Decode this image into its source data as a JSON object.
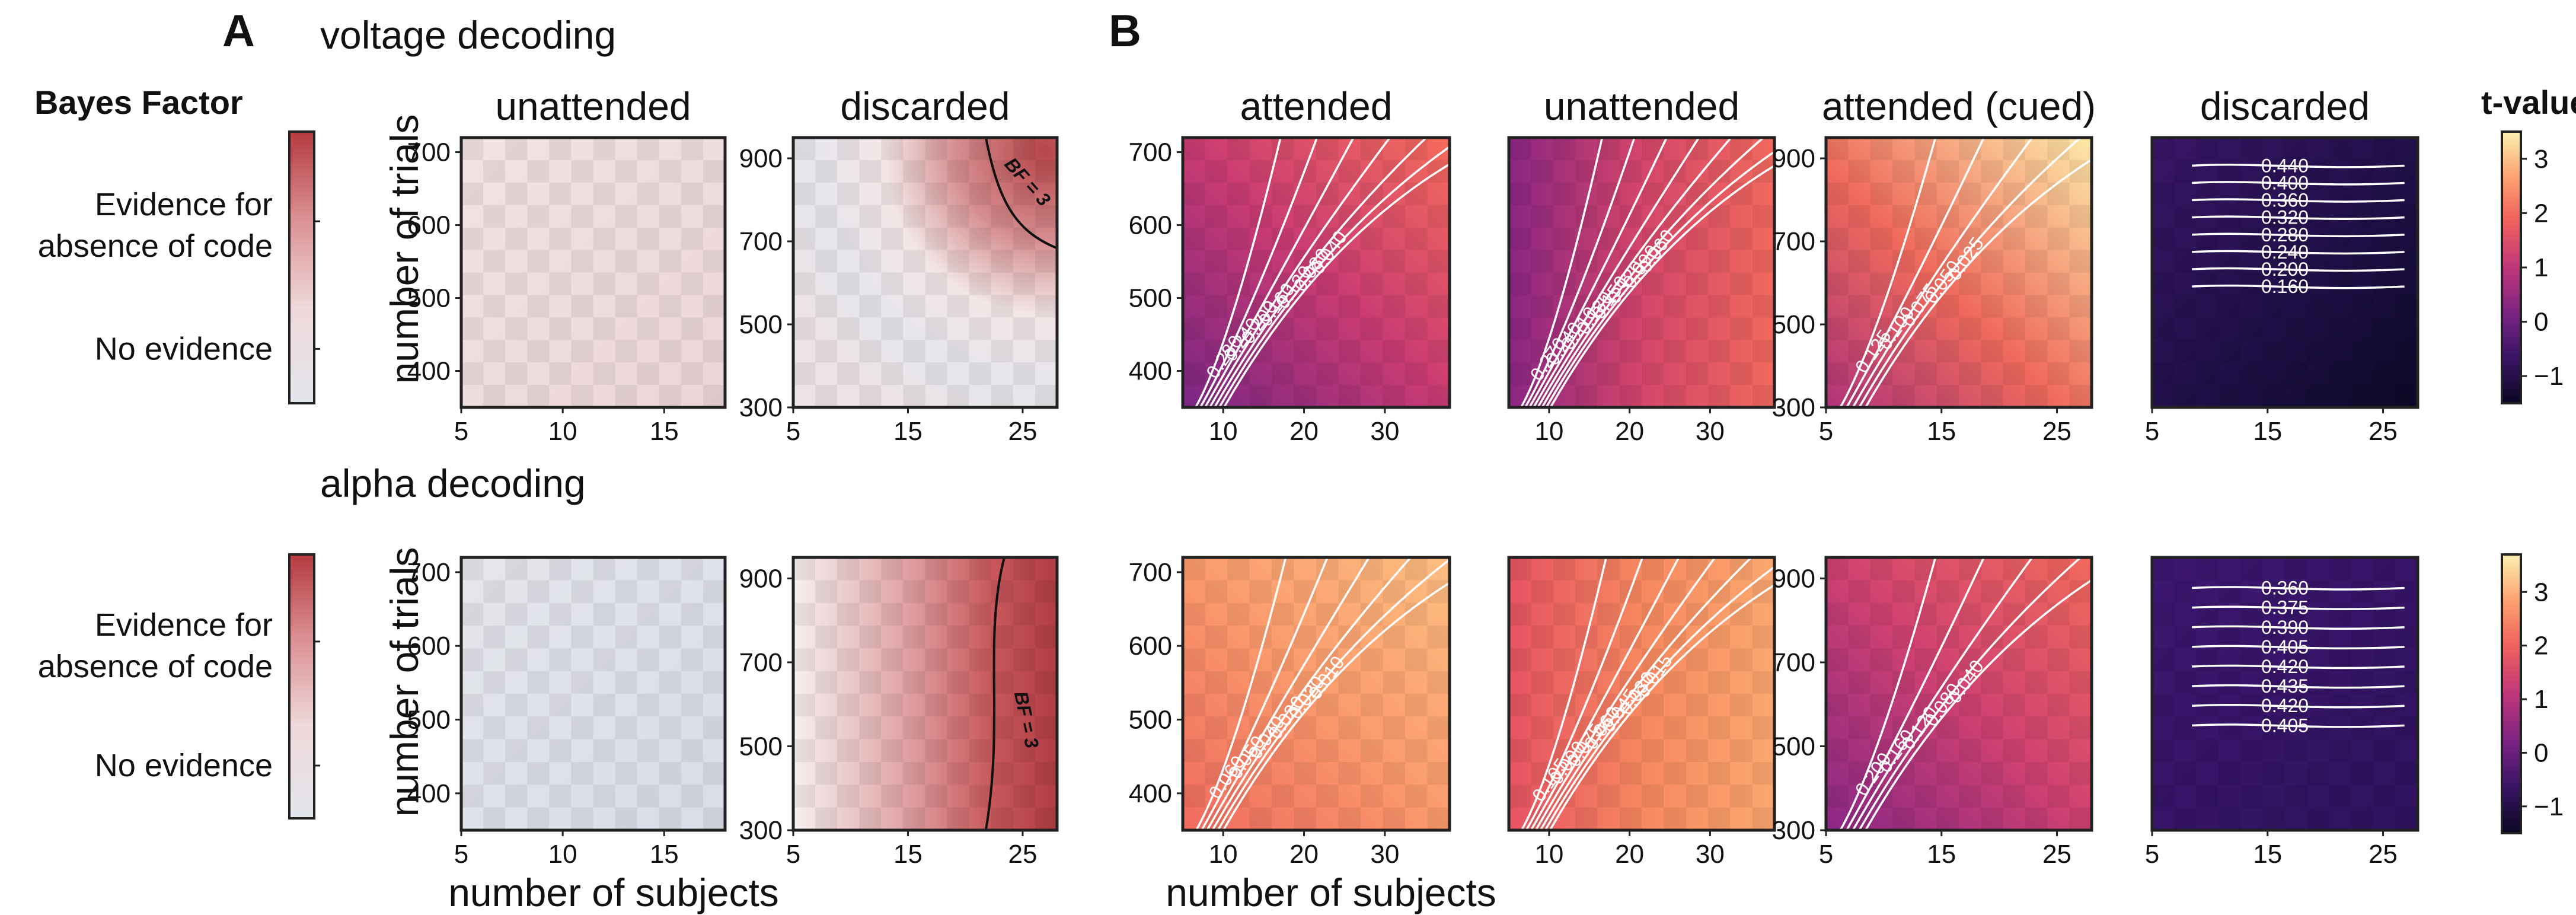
{
  "panel_labels": {
    "a": "A",
    "b": "B"
  },
  "row_titles": {
    "voltage": "voltage decoding",
    "alpha": "alpha decoding"
  },
  "bf_colorbar": {
    "title": "Bayes Factor",
    "label_evidence_line1": "Evidence for",
    "label_evidence_line2": "absence of code",
    "label_none": "No evidence",
    "stops": [
      "#e2e5ec",
      "#efd9da",
      "#d98b8e",
      "#b43a3f"
    ]
  },
  "t_colorbar": {
    "title": "t-value",
    "top": {
      "ticks": [
        "3",
        "2",
        "1",
        "0",
        "−1"
      ],
      "range": [
        -1.5,
        3.5
      ]
    },
    "bottom": {
      "ticks": [
        "3",
        "2",
        "1",
        "0",
        "−1"
      ],
      "range": [
        -1.5,
        3.7
      ]
    },
    "stops": [
      "#0b0722",
      "#3a1466",
      "#7b2382",
      "#c0377a",
      "#f0605d",
      "#fca06f",
      "#fcf0b0"
    ]
  },
  "axis_labels": {
    "trials": "number of trials",
    "subjects": "number of subjects"
  },
  "bf_line_label": "BF = 3",
  "chart_data": [
    {
      "type": "heatmap",
      "row": "voltage decoding",
      "title": "unattended",
      "measure": "Bayes Factor",
      "x_ticks": [
        "5",
        "10",
        "15"
      ],
      "y_ticks": [
        "700",
        "600",
        "500",
        "400"
      ],
      "xlim": [
        5,
        18
      ],
      "ylim": [
        350,
        720
      ],
      "values": "near-uniform light pink, slight evidence for absence of code"
    },
    {
      "type": "heatmap",
      "row": "voltage decoding",
      "title": "discarded",
      "measure": "Bayes Factor",
      "x_ticks": [
        "5",
        "15",
        "25"
      ],
      "y_ticks": [
        "900",
        "700",
        "500",
        "300"
      ],
      "xlim": [
        5,
        28
      ],
      "ylim": [
        300,
        950
      ],
      "annotations": [
        "BF = 3"
      ]
    },
    {
      "type": "heatmap",
      "row": "voltage decoding",
      "title": "attended",
      "measure": "t-value",
      "x_ticks": [
        "10",
        "20",
        "30"
      ],
      "y_ticks": [
        "700",
        "600",
        "500",
        "400"
      ],
      "xlim": [
        5,
        38
      ],
      "ylim": [
        350,
        720
      ],
      "contour_labels": [
        "0.040",
        "0.080",
        "0.120",
        "0.160",
        "0.200",
        "0.240",
        "0.280"
      ]
    },
    {
      "type": "heatmap",
      "row": "voltage decoding",
      "title": "unattended",
      "measure": "t-value",
      "x_ticks": [
        "10",
        "20",
        "30"
      ],
      "y_ticks": [],
      "xlim": [
        5,
        38
      ],
      "ylim": [
        350,
        720
      ],
      "contour_labels": [
        "0.060",
        "0.090",
        "0.120",
        "0.150",
        "0.180",
        "0.210",
        "0.240",
        "0.270"
      ]
    },
    {
      "type": "heatmap",
      "row": "voltage decoding",
      "title": "attended (cued)",
      "measure": "t-value",
      "x_ticks": [
        "5",
        "15",
        "25"
      ],
      "y_ticks": [
        "900",
        "700",
        "500",
        "300"
      ],
      "xlim": [
        5,
        28
      ],
      "ylim": [
        300,
        950
      ],
      "contour_labels": [
        "0.025",
        "0.050",
        "0.075",
        "0.100",
        "0.125"
      ]
    },
    {
      "type": "heatmap",
      "row": "voltage decoding",
      "title": "discarded",
      "measure": "t-value",
      "x_ticks": [
        "5",
        "15",
        "25"
      ],
      "y_ticks": [],
      "xlim": [
        5,
        28
      ],
      "ylim": [
        300,
        950
      ],
      "contour_labels": [
        "0.440",
        "0.400",
        "0.360",
        "0.320",
        "0.280",
        "0.240",
        "0.200",
        "0.160"
      ]
    },
    {
      "type": "heatmap",
      "row": "alpha decoding",
      "title": "",
      "measure": "Bayes Factor",
      "x_ticks": [
        "5",
        "10",
        "15"
      ],
      "y_ticks": [
        "700",
        "600",
        "500",
        "400"
      ],
      "xlim": [
        5,
        18
      ],
      "ylim": [
        350,
        720
      ],
      "values": "near-uniform light grey-blue, no evidence"
    },
    {
      "type": "heatmap",
      "row": "alpha decoding",
      "title": "",
      "measure": "Bayes Factor",
      "x_ticks": [
        "5",
        "15",
        "25"
      ],
      "y_ticks": [
        "900",
        "700",
        "500",
        "300"
      ],
      "xlim": [
        5,
        28
      ],
      "ylim": [
        300,
        950
      ],
      "annotations": [
        "BF = 3"
      ]
    },
    {
      "type": "heatmap",
      "row": "alpha decoding",
      "title": "",
      "measure": "t-value",
      "x_ticks": [
        "10",
        "20",
        "30"
      ],
      "y_ticks": [
        "700",
        "600",
        "500",
        "400"
      ],
      "xlim": [
        5,
        38
      ],
      "ylim": [
        350,
        720
      ],
      "contour_labels": [
        "0.010",
        "0.020",
        "0.030",
        "0.040",
        "0.050",
        "0.060"
      ]
    },
    {
      "type": "heatmap",
      "row": "alpha decoding",
      "title": "",
      "measure": "t-value",
      "x_ticks": [
        "10",
        "20",
        "30"
      ],
      "y_ticks": [],
      "xlim": [
        5,
        38
      ],
      "ylim": [
        350,
        720
      ],
      "contour_labels": [
        "0.015",
        "0.030",
        "0.045",
        "0.060",
        "0.075",
        "0.090",
        "0.105"
      ]
    },
    {
      "type": "heatmap",
      "row": "alpha decoding",
      "title": "",
      "measure": "t-value",
      "x_ticks": [
        "5",
        "15",
        "25"
      ],
      "y_ticks": [
        "900",
        "700",
        "500",
        "300"
      ],
      "xlim": [
        5,
        28
      ],
      "ylim": [
        300,
        950
      ],
      "contour_labels": [
        "0.040",
        "0.080",
        "0.120",
        "0.160",
        "0.200"
      ]
    },
    {
      "type": "heatmap",
      "row": "alpha decoding",
      "title": "",
      "measure": "t-value",
      "x_ticks": [
        "5",
        "15",
        "25"
      ],
      "y_ticks": [],
      "xlim": [
        5,
        28
      ],
      "ylim": [
        300,
        950
      ],
      "contour_labels": [
        "0.360",
        "0.375",
        "0.390",
        "0.405",
        "0.420",
        "0.435",
        "0.420",
        "0.405"
      ]
    }
  ]
}
